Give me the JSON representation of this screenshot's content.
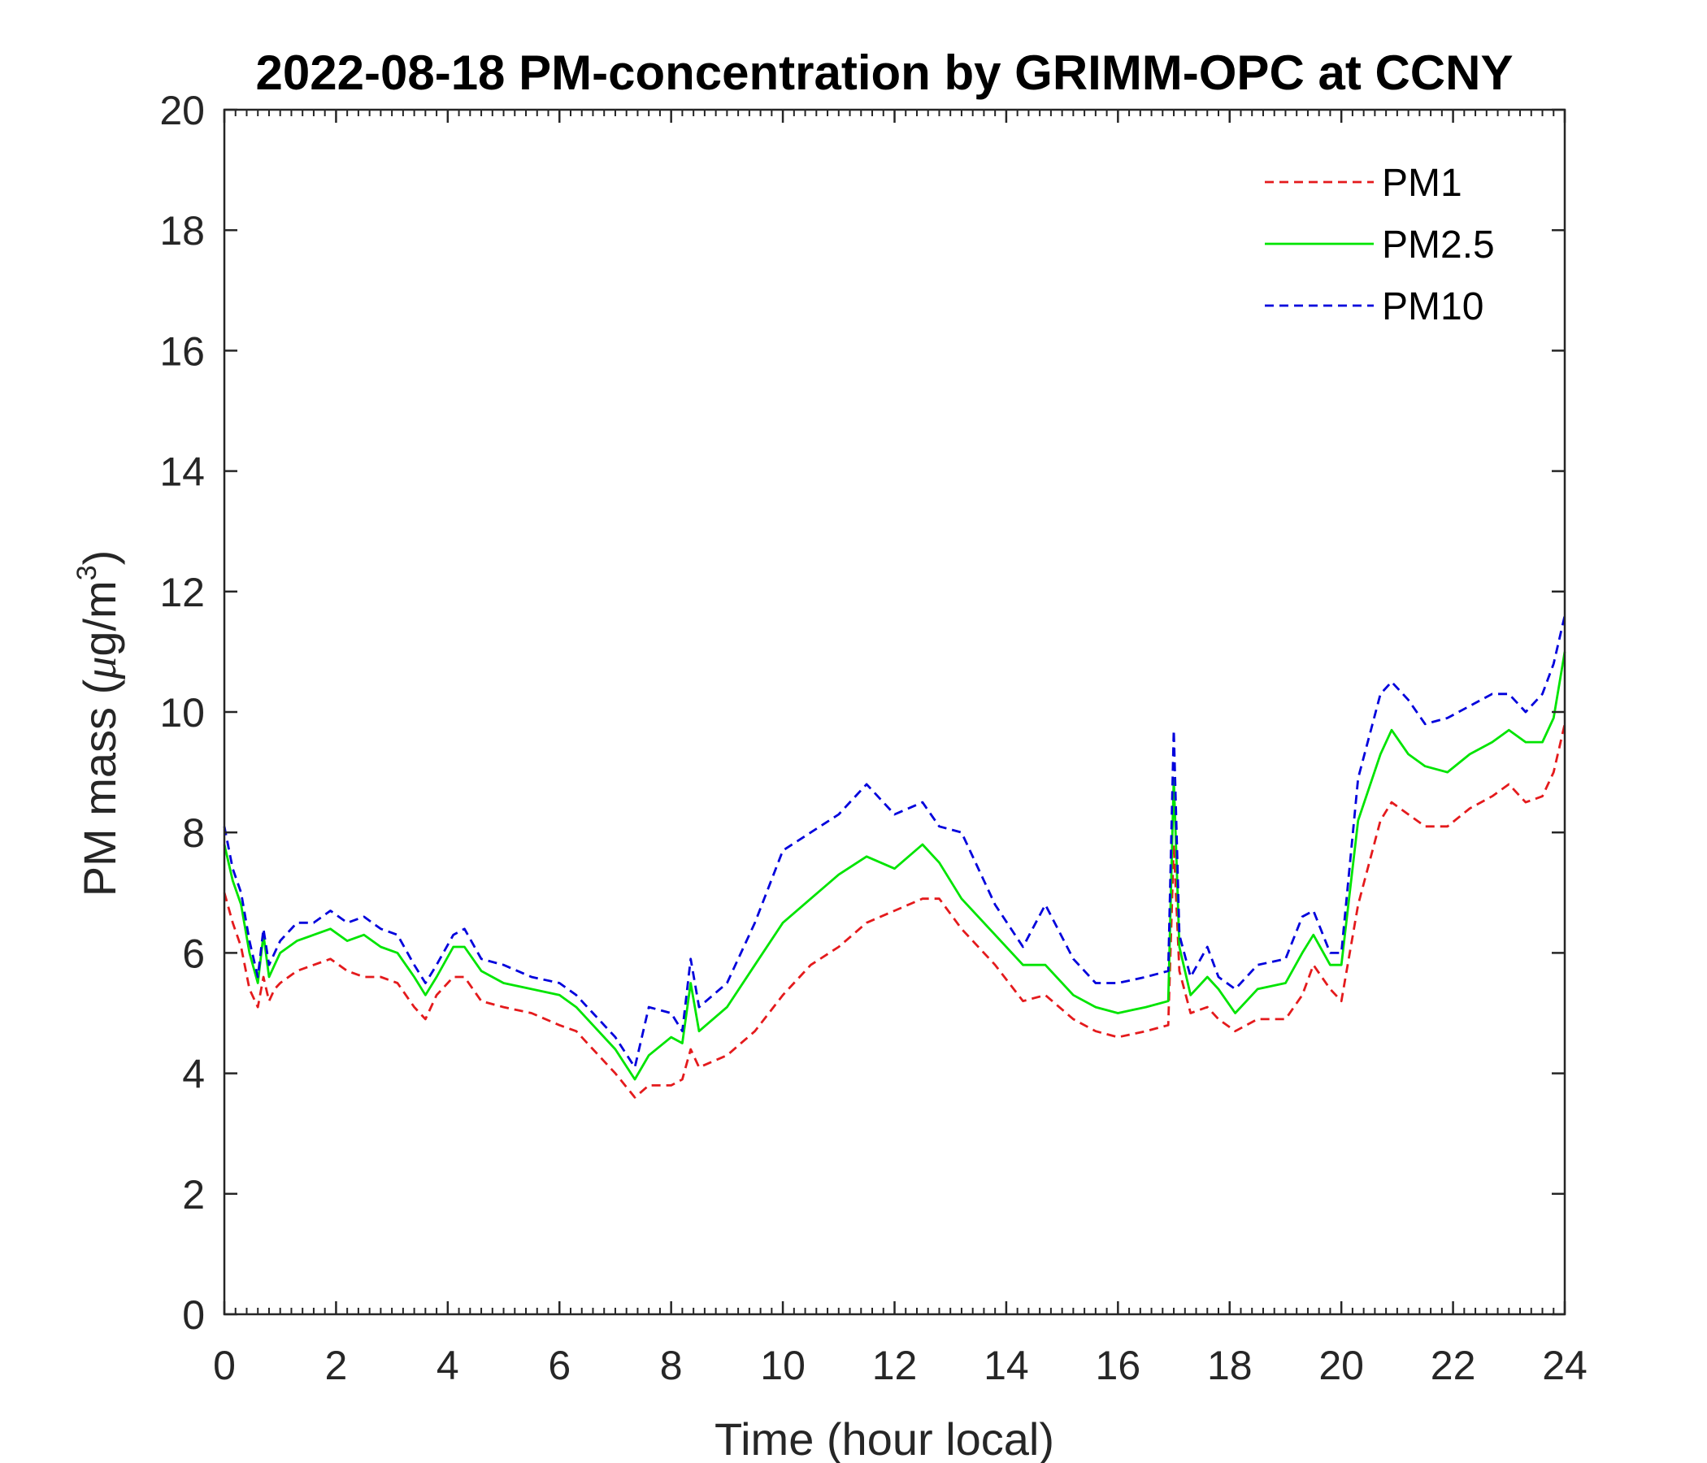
{
  "chart_data": {
    "type": "line",
    "title": "2022-08-18 PM-concentration by GRIMM-OPC at CCNY",
    "xlabel": "Time (hour local)",
    "ylabel_main": "PM mass (",
    "ylabel_mu": "μ",
    "ylabel_unit": "g/m",
    "ylabel_sup": "3",
    "ylabel_close": ")",
    "xlim": [
      0,
      24
    ],
    "ylim": [
      0,
      20
    ],
    "xticks": [
      0,
      2,
      4,
      6,
      8,
      10,
      12,
      14,
      16,
      18,
      20,
      22,
      24
    ],
    "yticks": [
      0,
      2,
      4,
      6,
      8,
      10,
      12,
      14,
      16,
      18,
      20
    ],
    "legend_position": "top-right",
    "grid": false,
    "series": [
      {
        "name": "PM1",
        "color": "#e41a1c",
        "style": "dashed",
        "x": [
          0,
          0.15,
          0.3,
          0.45,
          0.6,
          0.7,
          0.8,
          0.9,
          1.0,
          1.3,
          1.6,
          1.9,
          2.2,
          2.5,
          2.8,
          3.1,
          3.4,
          3.6,
          3.8,
          4.1,
          4.3,
          4.6,
          5.0,
          5.5,
          6.0,
          6.3,
          6.6,
          7.0,
          7.35,
          7.6,
          8.0,
          8.2,
          8.35,
          8.5,
          9.0,
          9.5,
          10.0,
          10.5,
          11.0,
          11.5,
          12.0,
          12.5,
          12.8,
          13.2,
          13.8,
          14.3,
          14.7,
          15.2,
          15.6,
          16.0,
          16.5,
          16.9,
          17.0,
          17.1,
          17.3,
          17.6,
          17.8,
          18.1,
          18.5,
          19.0,
          19.3,
          19.5,
          19.8,
          20.0,
          20.3,
          20.7,
          20.9,
          21.2,
          21.5,
          21.9,
          22.3,
          22.7,
          23.0,
          23.3,
          23.6,
          23.8,
          24.0
        ],
        "y": [
          7.0,
          6.5,
          6.1,
          5.4,
          5.1,
          5.6,
          5.2,
          5.4,
          5.5,
          5.7,
          5.8,
          5.9,
          5.7,
          5.6,
          5.6,
          5.5,
          5.1,
          4.9,
          5.3,
          5.6,
          5.6,
          5.2,
          5.1,
          5.0,
          4.8,
          4.7,
          4.4,
          4.0,
          3.6,
          3.8,
          3.8,
          3.9,
          4.4,
          4.1,
          4.3,
          4.7,
          5.3,
          5.8,
          6.1,
          6.5,
          6.7,
          6.9,
          6.9,
          6.4,
          5.8,
          5.2,
          5.3,
          4.9,
          4.7,
          4.6,
          4.7,
          4.8,
          7.8,
          5.7,
          5.0,
          5.1,
          4.9,
          4.7,
          4.9,
          4.9,
          5.3,
          5.8,
          5.4,
          5.2,
          6.8,
          8.2,
          8.5,
          8.3,
          8.1,
          8.1,
          8.4,
          8.6,
          8.8,
          8.5,
          8.6,
          9.0,
          9.8
        ]
      },
      {
        "name": "PM2.5",
        "color": "#00e400",
        "style": "solid",
        "x": [
          0,
          0.15,
          0.3,
          0.45,
          0.6,
          0.7,
          0.8,
          0.9,
          1.0,
          1.3,
          1.6,
          1.9,
          2.2,
          2.5,
          2.8,
          3.1,
          3.4,
          3.6,
          3.8,
          4.1,
          4.3,
          4.6,
          5.0,
          5.5,
          6.0,
          6.3,
          6.6,
          7.0,
          7.35,
          7.6,
          8.0,
          8.2,
          8.35,
          8.5,
          9.0,
          9.5,
          10.0,
          10.5,
          11.0,
          11.5,
          12.0,
          12.5,
          12.8,
          13.2,
          13.8,
          14.3,
          14.7,
          15.2,
          15.6,
          16.0,
          16.5,
          16.9,
          17.0,
          17.1,
          17.3,
          17.6,
          17.8,
          18.1,
          18.5,
          19.0,
          19.3,
          19.5,
          19.8,
          20.0,
          20.3,
          20.7,
          20.9,
          21.2,
          21.5,
          21.9,
          22.3,
          22.7,
          23.0,
          23.3,
          23.6,
          23.8,
          24.0
        ],
        "y": [
          7.8,
          7.2,
          6.8,
          6.0,
          5.5,
          6.3,
          5.6,
          5.8,
          6.0,
          6.2,
          6.3,
          6.4,
          6.2,
          6.3,
          6.1,
          6.0,
          5.6,
          5.3,
          5.6,
          6.1,
          6.1,
          5.7,
          5.5,
          5.4,
          5.3,
          5.1,
          4.8,
          4.4,
          3.9,
          4.3,
          4.6,
          4.5,
          5.5,
          4.7,
          5.1,
          5.8,
          6.5,
          6.9,
          7.3,
          7.6,
          7.4,
          7.8,
          7.5,
          6.9,
          6.3,
          5.8,
          5.8,
          5.3,
          5.1,
          5.0,
          5.1,
          5.2,
          8.9,
          6.1,
          5.3,
          5.6,
          5.4,
          5.0,
          5.4,
          5.5,
          6.0,
          6.3,
          5.8,
          5.8,
          8.2,
          9.3,
          9.7,
          9.3,
          9.1,
          9.0,
          9.3,
          9.5,
          9.7,
          9.5,
          9.5,
          9.9,
          11.0
        ]
      },
      {
        "name": "PM10",
        "color": "#0000dc",
        "style": "dashed",
        "x": [
          0,
          0.15,
          0.3,
          0.45,
          0.6,
          0.7,
          0.8,
          0.9,
          1.0,
          1.3,
          1.6,
          1.9,
          2.2,
          2.5,
          2.8,
          3.1,
          3.4,
          3.6,
          3.8,
          4.1,
          4.3,
          4.6,
          5.0,
          5.5,
          6.0,
          6.3,
          6.6,
          7.0,
          7.35,
          7.6,
          8.0,
          8.2,
          8.35,
          8.5,
          9.0,
          9.5,
          10.0,
          10.5,
          11.0,
          11.5,
          12.0,
          12.5,
          12.8,
          13.2,
          13.8,
          14.3,
          14.7,
          15.2,
          15.6,
          16.0,
          16.5,
          16.9,
          17.0,
          17.1,
          17.3,
          17.6,
          17.8,
          18.1,
          18.5,
          19.0,
          19.3,
          19.5,
          19.8,
          20.0,
          20.3,
          20.7,
          20.9,
          21.2,
          21.5,
          21.9,
          22.3,
          22.7,
          23.0,
          23.3,
          23.6,
          23.8,
          24.0
        ],
        "y": [
          8.1,
          7.4,
          7.0,
          6.2,
          5.6,
          6.4,
          5.8,
          6.0,
          6.2,
          6.5,
          6.5,
          6.7,
          6.5,
          6.6,
          6.4,
          6.3,
          5.8,
          5.5,
          5.8,
          6.3,
          6.4,
          5.9,
          5.8,
          5.6,
          5.5,
          5.3,
          5.0,
          4.6,
          4.1,
          5.1,
          5.0,
          4.7,
          5.9,
          5.1,
          5.5,
          6.5,
          7.7,
          8.0,
          8.3,
          8.8,
          8.3,
          8.5,
          8.1,
          8.0,
          6.8,
          6.1,
          6.8,
          5.9,
          5.5,
          5.5,
          5.6,
          5.7,
          9.7,
          6.3,
          5.6,
          6.1,
          5.6,
          5.4,
          5.8,
          5.9,
          6.6,
          6.7,
          6.0,
          6.0,
          8.9,
          10.3,
          10.5,
          10.2,
          9.8,
          9.9,
          10.1,
          10.3,
          10.3,
          10.0,
          10.3,
          10.8,
          11.6
        ]
      }
    ]
  }
}
